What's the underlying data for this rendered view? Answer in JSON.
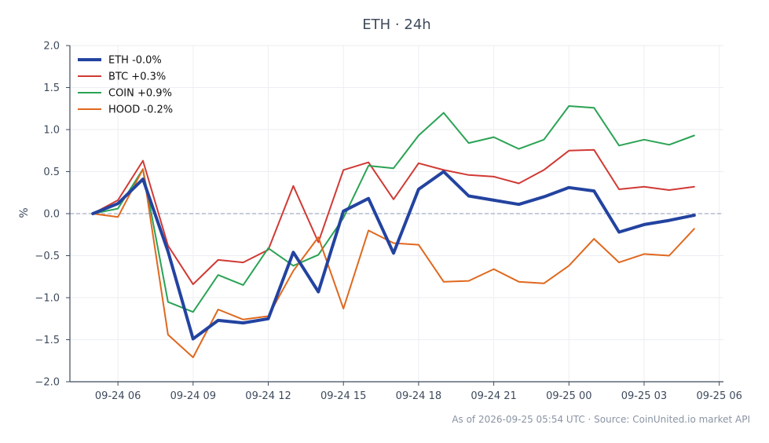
{
  "chart_data": {
    "type": "line",
    "title": "ETH · 24h",
    "ylabel": "%",
    "xlabel": "",
    "ylim": [
      -2.0,
      2.0
    ],
    "yticks": [
      -2.0,
      -1.5,
      -1.0,
      -0.5,
      0.0,
      0.5,
      1.0,
      1.5,
      2.0
    ],
    "ytick_labels": [
      "−2.0",
      "−1.5",
      "−1.0",
      "−0.5",
      "0.0",
      "0.5",
      "1.0",
      "1.5",
      "2.0"
    ],
    "xlim": [
      "2026-09-24 04:05",
      "2026-09-25 06:10"
    ],
    "xticks": [
      "2026-09-24 06:00",
      "2026-09-24 09:00",
      "2026-09-24 12:00",
      "2026-09-24 15:00",
      "2026-09-24 18:00",
      "2026-09-24 21:00",
      "2026-09-25 00:00",
      "2026-09-25 03:00",
      "2026-09-25 06:00"
    ],
    "xtick_labels": [
      "09-24 06",
      "09-24 09",
      "09-24 12",
      "09-24 15",
      "09-24 18",
      "09-24 21",
      "09-25 00",
      "09-25 03",
      "09-25 06"
    ],
    "x": [
      "2026-09-24 05:00",
      "2026-09-24 06:00",
      "2026-09-24 07:00",
      "2026-09-24 08:00",
      "2026-09-24 09:00",
      "2026-09-24 10:00",
      "2026-09-24 11:00",
      "2026-09-24 12:00",
      "2026-09-24 13:00",
      "2026-09-24 14:00",
      "2026-09-24 15:00",
      "2026-09-24 16:00",
      "2026-09-24 17:00",
      "2026-09-24 18:00",
      "2026-09-24 19:00",
      "2026-09-24 20:00",
      "2026-09-24 21:00",
      "2026-09-24 22:00",
      "2026-09-24 23:00",
      "2026-09-25 00:00",
      "2026-09-25 01:00",
      "2026-09-25 02:00",
      "2026-09-25 03:00",
      "2026-09-25 04:00",
      "2026-09-25 05:00"
    ],
    "series": [
      {
        "name": "ETH -0.0%",
        "color": "#2343a0",
        "width": 4,
        "values": [
          0.0,
          0.12,
          0.41,
          -0.45,
          -1.49,
          -1.27,
          -1.3,
          -1.25,
          -0.46,
          -0.93,
          0.03,
          0.18,
          -0.47,
          0.29,
          0.5,
          0.21,
          0.16,
          0.11,
          0.2,
          0.31,
          0.27,
          -0.22,
          -0.13,
          -0.08,
          -0.02
        ]
      },
      {
        "name": "BTC +0.3%",
        "color": "#d03a35",
        "width": 2,
        "values": [
          0.0,
          0.16,
          0.63,
          -0.38,
          -0.84,
          -0.55,
          -0.58,
          -0.43,
          0.33,
          -0.34,
          0.52,
          0.61,
          0.17,
          0.6,
          0.52,
          0.46,
          0.44,
          0.36,
          0.52,
          0.75,
          0.76,
          0.29,
          0.32,
          0.28,
          0.32
        ]
      },
      {
        "name": "COIN +0.9%",
        "color": "#2aa354",
        "width": 2,
        "values": [
          0.0,
          0.06,
          0.53,
          -1.05,
          -1.17,
          -0.73,
          -0.85,
          -0.41,
          -0.62,
          -0.49,
          -0.05,
          0.57,
          0.54,
          0.93,
          1.2,
          0.84,
          0.91,
          0.77,
          0.88,
          1.28,
          1.26,
          0.81,
          0.88,
          0.82,
          0.93
        ]
      },
      {
        "name": "HOOD -0.2%",
        "color": "#e0681e",
        "width": 2,
        "values": [
          0.0,
          -0.04,
          0.53,
          -1.44,
          -1.71,
          -1.14,
          -1.26,
          -1.22,
          -0.68,
          -0.28,
          -1.13,
          -0.2,
          -0.35,
          -0.37,
          -0.81,
          -0.8,
          -0.66,
          -0.81,
          -0.83,
          -0.62,
          -0.3,
          -0.58,
          -0.48,
          -0.5,
          -0.18
        ]
      }
    ],
    "reference_line": 0.0,
    "grid": true,
    "legend_position": "top-left"
  },
  "footer": "As of 2026-09-25 05:54 UTC · Source: CoinUnited.io market API"
}
